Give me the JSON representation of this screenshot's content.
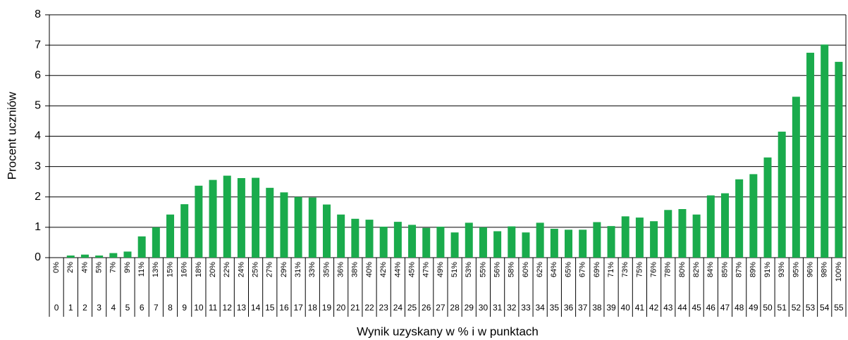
{
  "chart_data": {
    "type": "bar",
    "y_label": "Procent uczniów",
    "x_label": "Wynik uzyskany w % i w punktach",
    "categories": [
      "0",
      "1",
      "2",
      "3",
      "4",
      "5",
      "6",
      "7",
      "8",
      "9",
      "10",
      "11",
      "12",
      "13",
      "14",
      "15",
      "16",
      "17",
      "18",
      "19",
      "20",
      "21",
      "22",
      "23",
      "24",
      "25",
      "26",
      "27",
      "28",
      "29",
      "30",
      "31",
      "32",
      "33",
      "34",
      "35",
      "36",
      "37",
      "38",
      "39",
      "40",
      "41",
      "42",
      "43",
      "44",
      "45",
      "46",
      "47",
      "48",
      "49",
      "50",
      "51",
      "52",
      "53",
      "54",
      "55"
    ],
    "percent_labels": [
      "0%",
      "2%",
      "4%",
      "5%",
      "7%",
      "9%",
      "11%",
      "13%",
      "15%",
      "16%",
      "18%",
      "20%",
      "22%",
      "24%",
      "25%",
      "27%",
      "29%",
      "31%",
      "33%",
      "35%",
      "36%",
      "38%",
      "40%",
      "42%",
      "44%",
      "45%",
      "47%",
      "49%",
      "51%",
      "53%",
      "55%",
      "56%",
      "58%",
      "60%",
      "62%",
      "64%",
      "65%",
      "67%",
      "69%",
      "71%",
      "73%",
      "75%",
      "76%",
      "78%",
      "80%",
      "82%",
      "84%",
      "85%",
      "87%",
      "89%",
      "91%",
      "93%",
      "95%",
      "96%",
      "98%",
      "100%"
    ],
    "values": [
      0,
      0.07,
      0.1,
      0.07,
      0.15,
      0.2,
      0.7,
      1.0,
      1.42,
      1.76,
      2.37,
      2.56,
      2.7,
      2.62,
      2.63,
      2.3,
      2.15,
      2.0,
      1.98,
      1.75,
      1.42,
      1.28,
      1.25,
      1.02,
      1.18,
      1.08,
      0.98,
      1.02,
      0.83,
      1.15,
      1.0,
      0.87,
      1.03,
      0.83,
      1.15,
      0.95,
      0.92,
      0.92,
      1.17,
      1.04,
      1.36,
      1.32,
      1.2,
      1.57,
      1.6,
      1.42,
      2.05,
      2.12,
      2.58,
      2.75,
      3.3,
      4.15,
      5.3,
      6.75,
      7.02,
      6.45
    ],
    "color": "#1aab4c",
    "ylim": [
      0,
      8
    ],
    "yticks": [
      0,
      1,
      2,
      3,
      4,
      5,
      6,
      7,
      8
    ],
    "grid": true
  }
}
